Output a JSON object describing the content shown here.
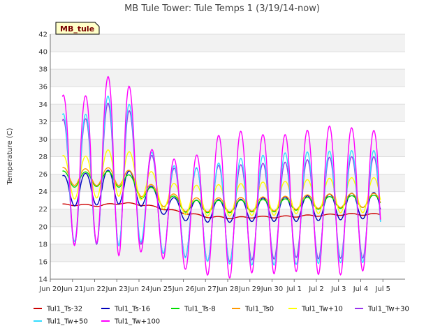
{
  "chart_data": {
    "type": "line",
    "title": "MB Tule Tower: Tule Temps 1 (3/19/14-now)",
    "badge": "MB_tule",
    "xlabel": "",
    "ylabel": "Temperature (C)",
    "ylim": [
      14,
      42
    ],
    "yticks": [
      14,
      16,
      18,
      20,
      22,
      24,
      26,
      28,
      30,
      32,
      34,
      36,
      38,
      40,
      42
    ],
    "xlim": [
      0,
      16
    ],
    "xticks": [
      {
        "x": 0,
        "label": "Jun 20"
      },
      {
        "x": 1,
        "label": "Jun 21"
      },
      {
        "x": 2,
        "label": "Jun 22"
      },
      {
        "x": 3,
        "label": "Jun 23"
      },
      {
        "x": 4,
        "label": "Jun 24"
      },
      {
        "x": 5,
        "label": "Jun 25"
      },
      {
        "x": 6,
        "label": "Jun 26"
      },
      {
        "x": 7,
        "label": "Jun 27"
      },
      {
        "x": 8,
        "label": "Jun 28"
      },
      {
        "x": 9,
        "label": "Jun 29"
      },
      {
        "x": 10,
        "label": "Jun 30"
      },
      {
        "x": 11,
        "label": "Jul 1"
      },
      {
        "x": 12,
        "label": "Jul 2"
      },
      {
        "x": 13,
        "label": "Jul 3"
      },
      {
        "x": 14,
        "label": "Jul 4"
      },
      {
        "x": 15,
        "label": "Jul 5"
      }
    ],
    "grid": true,
    "legend": "bottom",
    "series": [
      {
        "name": "Tul1_Ts-32",
        "color": "#cc0000",
        "mean": [
          22.5,
          22.5,
          22.4,
          22.7,
          22.5,
          22.0,
          21.5,
          21.1,
          21.0,
          21.1,
          21.1,
          21.2,
          21.3,
          21.4,
          21.4
        ],
        "amp": [
          0.1,
          0.1,
          0.1,
          0.1,
          0.1,
          0.1,
          0.1,
          0.1,
          0.1,
          0.1,
          0.1,
          0.1,
          0.1,
          0.1,
          0.1
        ]
      },
      {
        "name": "Tul1_Ts-16",
        "color": "#0000bb",
        "mean": [
          24.3,
          24.2,
          24.3,
          24.8,
          23.8,
          22.4,
          21.8,
          21.8,
          21.8,
          21.9,
          22.0,
          22.0,
          22.2,
          22.3,
          22.4
        ],
        "amp": [
          1.4,
          1.9,
          1.8,
          2.2,
          1.5,
          1.1,
          1.2,
          1.3,
          1.3,
          1.3,
          1.4,
          1.4,
          1.5,
          1.5,
          1.5
        ]
      },
      {
        "name": "Tul1_Ts-8",
        "color": "#00dd00",
        "mean": [
          25.5,
          25.4,
          25.4,
          25.5,
          24.0,
          23.0,
          22.3,
          22.3,
          22.3,
          22.4,
          22.4,
          22.6,
          22.7,
          22.8,
          22.9
        ],
        "amp": [
          0.9,
          0.9,
          0.8,
          1.0,
          0.9,
          0.8,
          0.7,
          0.7,
          0.7,
          0.7,
          0.7,
          0.7,
          0.7,
          0.7,
          0.7
        ]
      },
      {
        "name": "Tul1_Ts0",
        "color": "#ff9900",
        "mean": [
          25.8,
          25.7,
          25.6,
          25.9,
          24.3,
          23.1,
          22.5,
          22.5,
          22.5,
          22.6,
          22.6,
          22.8,
          22.9,
          23.0,
          23.0
        ],
        "amp": [
          1.0,
          1.0,
          0.9,
          1.2,
          1.0,
          0.9,
          0.8,
          0.8,
          0.8,
          0.8,
          0.8,
          0.8,
          0.8,
          0.8,
          0.8
        ]
      },
      {
        "name": "Tul1_Tw+10",
        "color": "#ffff00",
        "mean": [
          26.0,
          25.5,
          25.8,
          26.5,
          25.0,
          23.5,
          23.0,
          23.0,
          23.0,
          23.2,
          23.2,
          23.4,
          23.5,
          23.6,
          23.6
        ],
        "amp": [
          2.3,
          2.4,
          2.5,
          3.0,
          2.0,
          1.6,
          1.7,
          1.8,
          1.8,
          1.9,
          1.9,
          1.9,
          2.0,
          2.0,
          2.0
        ]
      },
      {
        "name": "Tul1_Tw+30",
        "color": "#9933ee",
        "mean": [
          25.5,
          24.9,
          25.5,
          26.8,
          23.5,
          21.8,
          21.5,
          21.5,
          21.5,
          21.7,
          21.8,
          22.0,
          22.1,
          22.2,
          22.2
        ],
        "amp": [
          7.0,
          7.0,
          7.5,
          9.0,
          5.5,
          5.0,
          5.0,
          5.5,
          5.5,
          5.5,
          5.5,
          5.5,
          5.8,
          5.8,
          5.8
        ]
      },
      {
        "name": "Tul1_Tw+50",
        "color": "#33ddff",
        "mean": [
          25.8,
          25.3,
          25.9,
          27.3,
          23.8,
          22.0,
          21.5,
          21.5,
          21.7,
          21.8,
          22.0,
          22.1,
          22.2,
          22.3,
          22.3
        ],
        "amp": [
          7.5,
          7.0,
          7.8,
          9.5,
          5.5,
          5.2,
          5.1,
          5.5,
          6.0,
          6.2,
          6.4,
          6.4,
          6.4,
          6.4,
          6.4
        ]
      },
      {
        "name": "Tul1_Tw+100",
        "color": "#ff00ff",
        "mean": [
          26.7,
          26.3,
          26.7,
          28.3,
          23.2,
          22.2,
          21.0,
          22.2,
          22.6,
          22.7,
          22.5,
          22.8,
          23.0,
          23.0,
          23.0
        ],
        "amp": [
          8.5,
          8.5,
          8.5,
          11.8,
          6.0,
          6.0,
          6.0,
          7.8,
          8.5,
          7.9,
          7.9,
          7.9,
          8.5,
          8.5,
          8.0
        ]
      }
    ]
  }
}
